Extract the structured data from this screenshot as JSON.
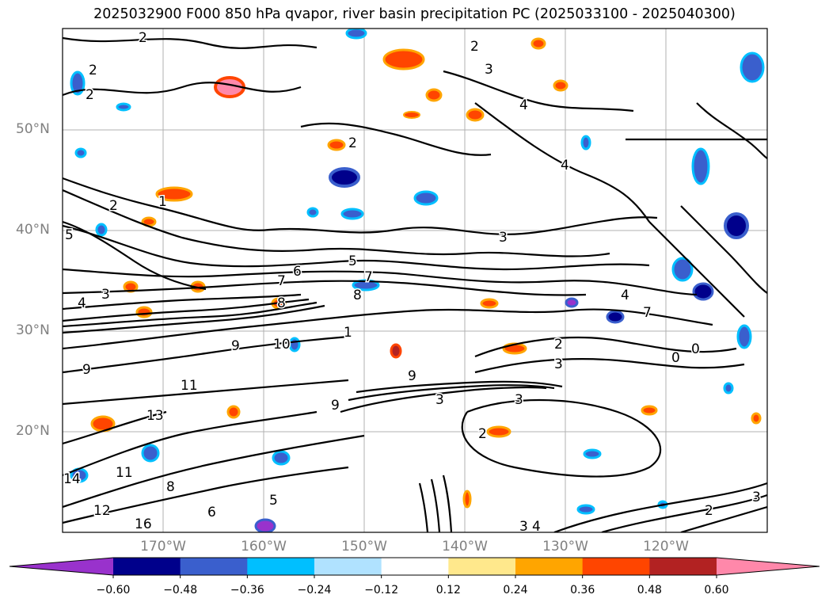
{
  "title": "2025032900 F000 850 hPa qvapor, river basin precipitation PC (2025033100 - 2025040300)",
  "map": {
    "lat_ticks": [
      "50°N",
      "40°N",
      "30°N",
      "20°N"
    ],
    "lon_ticks": [
      "170°W",
      "160°W",
      "150°W",
      "140°W",
      "130°W",
      "120°W"
    ],
    "gridlines": true
  },
  "contour_labels": [
    "2",
    "2",
    "2",
    "2",
    "3",
    "4",
    "4",
    "2",
    "1",
    "2",
    "5",
    "3",
    "5",
    "6",
    "7",
    "8",
    "4",
    "3",
    "7",
    "8",
    "9",
    "10",
    "11",
    "9",
    "9",
    "2",
    "3",
    "3",
    "4",
    "7",
    "0",
    "9",
    "3",
    "2",
    "12",
    "11",
    "13",
    "14",
    "16",
    "8",
    "6",
    "5",
    "3",
    "4",
    "3",
    "2",
    "1",
    "0"
  ],
  "colorbar": {
    "ticks": [
      "−0.60",
      "−0.48",
      "−0.36",
      "−0.24",
      "−0.12",
      "0.12",
      "0.24",
      "0.36",
      "0.48",
      "0.60"
    ],
    "colors": [
      "#9932CC",
      "#00008B",
      "#3A5FCD",
      "#00BFFF",
      "#B0E2FF",
      "#FFFFFF",
      "#FFE88C",
      "#FFA500",
      "#FF4500",
      "#B22222",
      "#FF88AA"
    ],
    "extend": "both"
  }
}
